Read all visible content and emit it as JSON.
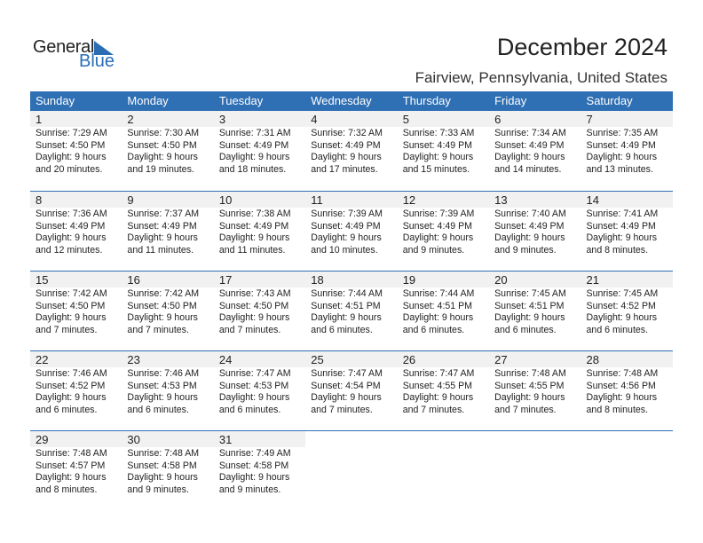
{
  "logo": {
    "line1": "General",
    "line2": "Blue"
  },
  "header": {
    "title": "December 2024",
    "location": "Fairview, Pennsylvania, United States"
  },
  "colors": {
    "accent": "#2f6fb3",
    "day_band": "#f1f1f1"
  },
  "weekdays": [
    "Sunday",
    "Monday",
    "Tuesday",
    "Wednesday",
    "Thursday",
    "Friday",
    "Saturday"
  ],
  "days": [
    {
      "day": "1",
      "sunrise": "Sunrise: 7:29 AM",
      "sunset": "Sunset: 4:50 PM",
      "daylight": "Daylight: 9 hours",
      "minutes": "and 20 minutes."
    },
    {
      "day": "2",
      "sunrise": "Sunrise: 7:30 AM",
      "sunset": "Sunset: 4:50 PM",
      "daylight": "Daylight: 9 hours",
      "minutes": "and 19 minutes."
    },
    {
      "day": "3",
      "sunrise": "Sunrise: 7:31 AM",
      "sunset": "Sunset: 4:49 PM",
      "daylight": "Daylight: 9 hours",
      "minutes": "and 18 minutes."
    },
    {
      "day": "4",
      "sunrise": "Sunrise: 7:32 AM",
      "sunset": "Sunset: 4:49 PM",
      "daylight": "Daylight: 9 hours",
      "minutes": "and 17 minutes."
    },
    {
      "day": "5",
      "sunrise": "Sunrise: 7:33 AM",
      "sunset": "Sunset: 4:49 PM",
      "daylight": "Daylight: 9 hours",
      "minutes": "and 15 minutes."
    },
    {
      "day": "6",
      "sunrise": "Sunrise: 7:34 AM",
      "sunset": "Sunset: 4:49 PM",
      "daylight": "Daylight: 9 hours",
      "minutes": "and 14 minutes."
    },
    {
      "day": "7",
      "sunrise": "Sunrise: 7:35 AM",
      "sunset": "Sunset: 4:49 PM",
      "daylight": "Daylight: 9 hours",
      "minutes": "and 13 minutes."
    },
    {
      "day": "8",
      "sunrise": "Sunrise: 7:36 AM",
      "sunset": "Sunset: 4:49 PM",
      "daylight": "Daylight: 9 hours",
      "minutes": "and 12 minutes."
    },
    {
      "day": "9",
      "sunrise": "Sunrise: 7:37 AM",
      "sunset": "Sunset: 4:49 PM",
      "daylight": "Daylight: 9 hours",
      "minutes": "and 11 minutes."
    },
    {
      "day": "10",
      "sunrise": "Sunrise: 7:38 AM",
      "sunset": "Sunset: 4:49 PM",
      "daylight": "Daylight: 9 hours",
      "minutes": "and 11 minutes."
    },
    {
      "day": "11",
      "sunrise": "Sunrise: 7:39 AM",
      "sunset": "Sunset: 4:49 PM",
      "daylight": "Daylight: 9 hours",
      "minutes": "and 10 minutes."
    },
    {
      "day": "12",
      "sunrise": "Sunrise: 7:39 AM",
      "sunset": "Sunset: 4:49 PM",
      "daylight": "Daylight: 9 hours",
      "minutes": "and 9 minutes."
    },
    {
      "day": "13",
      "sunrise": "Sunrise: 7:40 AM",
      "sunset": "Sunset: 4:49 PM",
      "daylight": "Daylight: 9 hours",
      "minutes": "and 9 minutes."
    },
    {
      "day": "14",
      "sunrise": "Sunrise: 7:41 AM",
      "sunset": "Sunset: 4:49 PM",
      "daylight": "Daylight: 9 hours",
      "minutes": "and 8 minutes."
    },
    {
      "day": "15",
      "sunrise": "Sunrise: 7:42 AM",
      "sunset": "Sunset: 4:50 PM",
      "daylight": "Daylight: 9 hours",
      "minutes": "and 7 minutes."
    },
    {
      "day": "16",
      "sunrise": "Sunrise: 7:42 AM",
      "sunset": "Sunset: 4:50 PM",
      "daylight": "Daylight: 9 hours",
      "minutes": "and 7 minutes."
    },
    {
      "day": "17",
      "sunrise": "Sunrise: 7:43 AM",
      "sunset": "Sunset: 4:50 PM",
      "daylight": "Daylight: 9 hours",
      "minutes": "and 7 minutes."
    },
    {
      "day": "18",
      "sunrise": "Sunrise: 7:44 AM",
      "sunset": "Sunset: 4:51 PM",
      "daylight": "Daylight: 9 hours",
      "minutes": "and 6 minutes."
    },
    {
      "day": "19",
      "sunrise": "Sunrise: 7:44 AM",
      "sunset": "Sunset: 4:51 PM",
      "daylight": "Daylight: 9 hours",
      "minutes": "and 6 minutes."
    },
    {
      "day": "20",
      "sunrise": "Sunrise: 7:45 AM",
      "sunset": "Sunset: 4:51 PM",
      "daylight": "Daylight: 9 hours",
      "minutes": "and 6 minutes."
    },
    {
      "day": "21",
      "sunrise": "Sunrise: 7:45 AM",
      "sunset": "Sunset: 4:52 PM",
      "daylight": "Daylight: 9 hours",
      "minutes": "and 6 minutes."
    },
    {
      "day": "22",
      "sunrise": "Sunrise: 7:46 AM",
      "sunset": "Sunset: 4:52 PM",
      "daylight": "Daylight: 9 hours",
      "minutes": "and 6 minutes."
    },
    {
      "day": "23",
      "sunrise": "Sunrise: 7:46 AM",
      "sunset": "Sunset: 4:53 PM",
      "daylight": "Daylight: 9 hours",
      "minutes": "and 6 minutes."
    },
    {
      "day": "24",
      "sunrise": "Sunrise: 7:47 AM",
      "sunset": "Sunset: 4:53 PM",
      "daylight": "Daylight: 9 hours",
      "minutes": "and 6 minutes."
    },
    {
      "day": "25",
      "sunrise": "Sunrise: 7:47 AM",
      "sunset": "Sunset: 4:54 PM",
      "daylight": "Daylight: 9 hours",
      "minutes": "and 7 minutes."
    },
    {
      "day": "26",
      "sunrise": "Sunrise: 7:47 AM",
      "sunset": "Sunset: 4:55 PM",
      "daylight": "Daylight: 9 hours",
      "minutes": "and 7 minutes."
    },
    {
      "day": "27",
      "sunrise": "Sunrise: 7:48 AM",
      "sunset": "Sunset: 4:55 PM",
      "daylight": "Daylight: 9 hours",
      "minutes": "and 7 minutes."
    },
    {
      "day": "28",
      "sunrise": "Sunrise: 7:48 AM",
      "sunset": "Sunset: 4:56 PM",
      "daylight": "Daylight: 9 hours",
      "minutes": "and 8 minutes."
    },
    {
      "day": "29",
      "sunrise": "Sunrise: 7:48 AM",
      "sunset": "Sunset: 4:57 PM",
      "daylight": "Daylight: 9 hours",
      "minutes": "and 8 minutes."
    },
    {
      "day": "30",
      "sunrise": "Sunrise: 7:48 AM",
      "sunset": "Sunset: 4:58 PM",
      "daylight": "Daylight: 9 hours",
      "minutes": "and 9 minutes."
    },
    {
      "day": "31",
      "sunrise": "Sunrise: 7:49 AM",
      "sunset": "Sunset: 4:58 PM",
      "daylight": "Daylight: 9 hours",
      "minutes": "and 9 minutes."
    }
  ]
}
